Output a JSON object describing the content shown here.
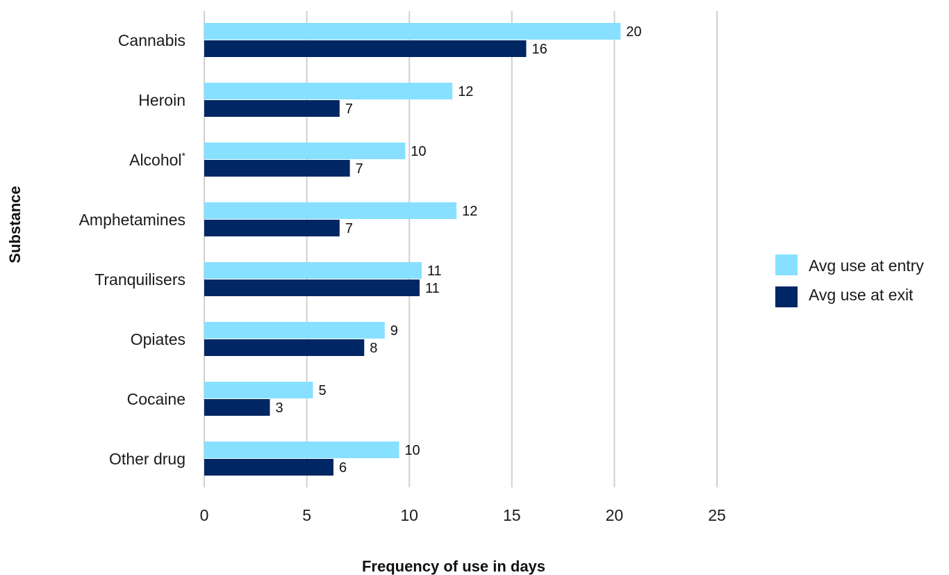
{
  "chart_data": {
    "type": "bar",
    "orientation": "horizontal",
    "categories": [
      "Cannabis",
      "Heroin",
      "Alcohol",
      "Amphetamines",
      "Tranquilisers",
      "Opiates",
      "Cocaine",
      "Other drug"
    ],
    "category_superscripts": [
      "",
      "",
      "*",
      "",
      "",
      "",
      "",
      ""
    ],
    "series": [
      {
        "name": "Avg use at entry",
        "color": "#87e0ff",
        "values": [
          20.3,
          12.1,
          9.8,
          12.3,
          10.6,
          8.8,
          5.3,
          9.5
        ],
        "labels": [
          "20",
          "12",
          "10",
          "12",
          "11",
          "9",
          "5",
          "10"
        ]
      },
      {
        "name": "Avg use at exit",
        "color": "#002664",
        "values": [
          15.7,
          6.6,
          7.1,
          6.6,
          10.5,
          7.8,
          3.2,
          6.3
        ],
        "labels": [
          "16",
          "7",
          "7",
          "7",
          "11",
          "8",
          "3",
          "6"
        ]
      }
    ],
    "xticks": [
      "0",
      "5",
      "10",
      "15",
      "20",
      "25"
    ],
    "xlim": [
      0,
      25
    ],
    "xlabel": "Frequency of use in days",
    "ylabel": "Substance",
    "grid": "vertical",
    "legend_position": "right"
  }
}
